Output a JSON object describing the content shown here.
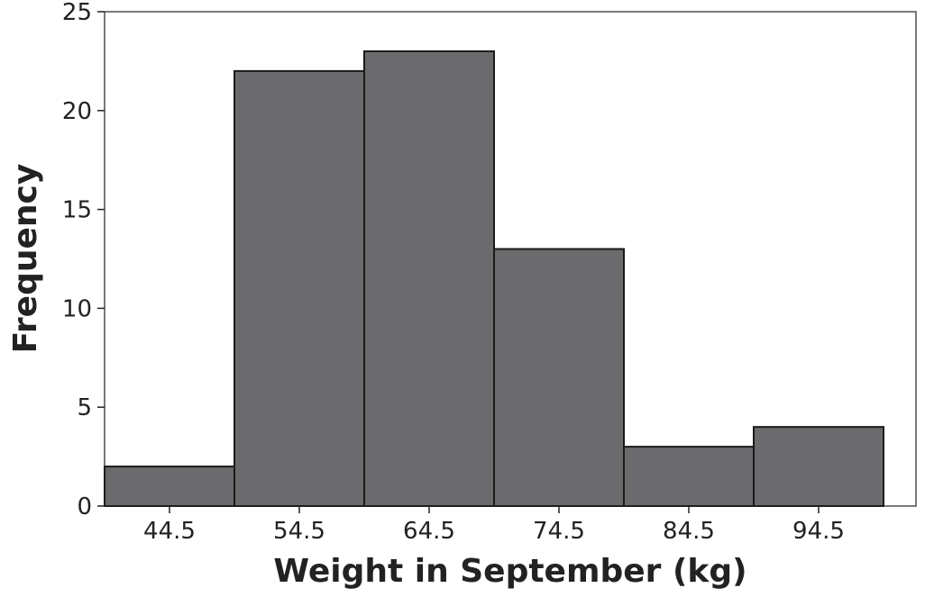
{
  "chart_data": {
    "type": "bar",
    "xlabel": "Weight in September (kg)",
    "ylabel": "Frequency",
    "categories": [
      "44.5",
      "54.5",
      "64.5",
      "74.5",
      "84.5",
      "94.5"
    ],
    "values": [
      2,
      22,
      23,
      13,
      3,
      4
    ],
    "ylim": [
      0,
      25
    ],
    "yticks": [
      0,
      5,
      10,
      15,
      20,
      25
    ],
    "grid": false,
    "colors": {
      "bar_fill": "#6b6b6e",
      "bar_stroke": "#1a1a1a",
      "axis": "#222222"
    }
  }
}
